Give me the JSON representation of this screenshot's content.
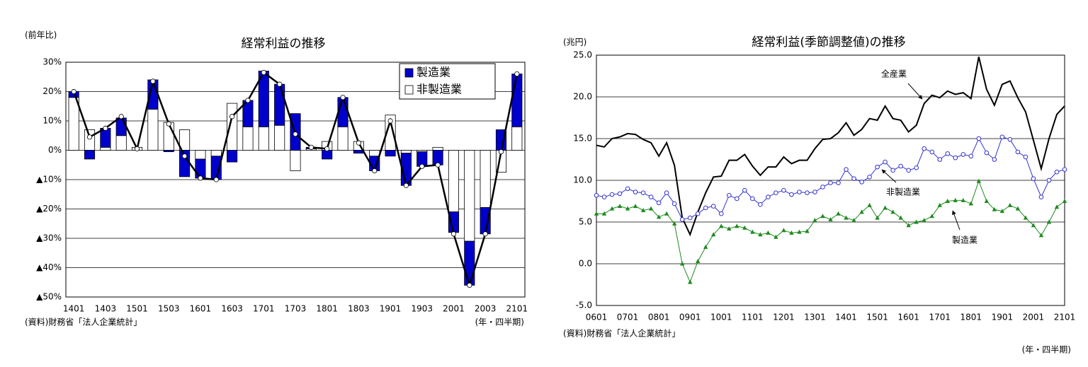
{
  "chart_data": [
    {
      "type": "bar",
      "stacked": true,
      "title": "経常利益の推移",
      "y_unit": "(前年比)",
      "source": "(資料)財務省「法人企業統計」",
      "x_unit": "(年・四半期)",
      "categories": [
        "1401",
        null,
        "1403",
        null,
        "1501",
        null,
        "1503",
        null,
        "1601",
        null,
        "1603",
        null,
        "1701",
        null,
        "1703",
        null,
        "1801",
        null,
        "1803",
        null,
        "1901",
        null,
        "1903",
        null,
        "2001",
        null,
        "2003",
        null,
        "2101"
      ],
      "series": [
        {
          "name": "製造業",
          "color": "#0000cc",
          "values": [
            2,
            -3,
            6.5,
            6,
            0,
            10,
            -0.5,
            -9,
            -6.5,
            -8,
            -4,
            9,
            19,
            14,
            12.5,
            0.5,
            -3,
            10,
            -1,
            -5,
            -2,
            -11,
            -5,
            -5,
            -7,
            -15,
            -9,
            7,
            18
          ]
        },
        {
          "name": "非製造業",
          "color": "#ffffff",
          "values": [
            18,
            7,
            1,
            5,
            1,
            14,
            9.5,
            7,
            -3,
            -2,
            16,
            8,
            8,
            8.5,
            -7,
            0.5,
            3,
            8,
            3,
            -2,
            12,
            -1,
            -0.5,
            1,
            -21,
            -31,
            -19.5,
            -7.5,
            8
          ]
        },
        {
          "type": "line",
          "color": "#000000",
          "values": [
            20,
            4.5,
            7.5,
            11.5,
            0.5,
            23.5,
            9,
            -2,
            -9.5,
            -10,
            11.5,
            17,
            26.5,
            22.5,
            5.5,
            1,
            0.5,
            18,
            2.5,
            -7,
            10,
            -12,
            -5.5,
            -5,
            -28.5,
            -46,
            -28.5,
            -0.5,
            26
          ]
        }
      ],
      "ylim": [
        -50,
        30
      ],
      "yticks": [
        {
          "value": -50,
          "label": "▲50%"
        },
        {
          "value": -40,
          "label": "▲40%"
        },
        {
          "value": -30,
          "label": "▲30%"
        },
        {
          "value": -20,
          "label": "▲20%"
        },
        {
          "value": -10,
          "label": "▲10%"
        },
        {
          "value": 0,
          "label": "0%"
        },
        {
          "value": 10,
          "label": "10%"
        },
        {
          "value": 20,
          "label": "20%"
        },
        {
          "value": 30,
          "label": "30%"
        }
      ],
      "grid": true,
      "legend": "upper right"
    },
    {
      "type": "line",
      "title": "経常利益(季節調整値)の推移",
      "y_unit": "(兆円)",
      "source": "(資料)財務省「法人企業統計」",
      "x_unit": "(年・四半期)",
      "categories": [
        "0601",
        null,
        null,
        null,
        "0701",
        null,
        null,
        null,
        "0801",
        null,
        null,
        null,
        "0901",
        null,
        null,
        null,
        "1001",
        null,
        null,
        null,
        "1101",
        null,
        null,
        null,
        "1201",
        null,
        null,
        null,
        "1301",
        null,
        null,
        null,
        "1401",
        null,
        null,
        null,
        "1501",
        null,
        null,
        null,
        "1601",
        null,
        null,
        null,
        "1701",
        null,
        null,
        null,
        "1801",
        null,
        null,
        null,
        "1901",
        null,
        null,
        null,
        "2001",
        null,
        null,
        null,
        "2101"
      ],
      "series": [
        {
          "name": "全産業",
          "color": "#000000",
          "marker": "none",
          "values": [
            14.2,
            14.0,
            15.0,
            15.2,
            15.6,
            15.5,
            14.9,
            14.5,
            12.9,
            14.5,
            11.8,
            5.5,
            3.5,
            6.2,
            8.5,
            10.4,
            10.5,
            12.4,
            12.4,
            13.1,
            11.7,
            10.6,
            11.6,
            11.6,
            12.8,
            12.0,
            12.4,
            12.4,
            13.8,
            14.9,
            15.0,
            15.7,
            16.9,
            15.4,
            16.1,
            17.4,
            17.2,
            18.9,
            17.4,
            17.2,
            15.8,
            16.6,
            19.2,
            20.2,
            19.9,
            20.7,
            20.3,
            20.5,
            19.8,
            24.8,
            20.9,
            19.0,
            21.5,
            21.9,
            19.9,
            18.2,
            14.8,
            11.4,
            15.0,
            17.9,
            18.9
          ]
        },
        {
          "name": "非製造業",
          "color": "#3333cc",
          "marker": "circle",
          "values": [
            8.2,
            8.0,
            8.3,
            8.4,
            9.0,
            8.6,
            8.5,
            8.0,
            7.3,
            8.5,
            7.2,
            5.3,
            5.5,
            6.0,
            6.7,
            6.9,
            6.0,
            8.2,
            7.8,
            8.8,
            7.8,
            7.1,
            8.0,
            8.5,
            8.8,
            8.3,
            8.6,
            8.5,
            8.6,
            9.2,
            9.7,
            9.7,
            11.3,
            10.2,
            9.8,
            10.4,
            11.6,
            12.2,
            11.2,
            11.7,
            11.2,
            11.5,
            13.8,
            13.4,
            12.5,
            13.2,
            12.7,
            13.1,
            12.9,
            15.0,
            13.3,
            12.5,
            15.2,
            14.9,
            13.4,
            12.8,
            10.2,
            8.0,
            10.0,
            11.0,
            11.3
          ]
        },
        {
          "name": "製造業",
          "color": "#1f8a1f",
          "marker": "triangle",
          "values": [
            6.0,
            6.0,
            6.6,
            6.9,
            6.6,
            6.9,
            6.4,
            6.6,
            5.6,
            6.0,
            4.8,
            0.0,
            -2.2,
            0.3,
            2.0,
            3.5,
            4.5,
            4.2,
            4.5,
            4.3,
            3.8,
            3.5,
            3.7,
            3.2,
            4.0,
            3.7,
            3.8,
            3.9,
            5.2,
            5.7,
            5.3,
            6.0,
            5.5,
            5.2,
            6.2,
            7.0,
            5.5,
            6.7,
            6.2,
            5.5,
            4.6,
            5.0,
            5.2,
            5.7,
            7.0,
            7.5,
            7.6,
            7.6,
            7.2,
            9.9,
            7.5,
            6.5,
            6.3,
            7.0,
            6.6,
            5.5,
            4.6,
            3.4,
            5.0,
            6.8,
            7.5
          ]
        }
      ],
      "ylim": [
        -5,
        25
      ],
      "yticks": [
        {
          "value": -5,
          "label": "-5.0"
        },
        {
          "value": 0,
          "label": "0.0"
        },
        {
          "value": 5,
          "label": "5.0"
        },
        {
          "value": 10,
          "label": "10.0"
        },
        {
          "value": 15,
          "label": "15.0"
        },
        {
          "value": 20,
          "label": "20.0"
        },
        {
          "value": 25,
          "label": "25.0"
        }
      ],
      "grid": true
    }
  ]
}
